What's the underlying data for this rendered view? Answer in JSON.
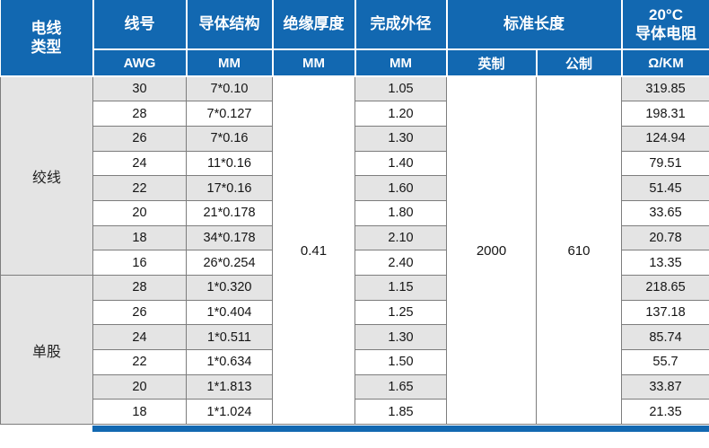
{
  "table": {
    "header": {
      "wire_type": {
        "line1": "电线",
        "line2": "类型"
      },
      "wire_no": {
        "title": "线号",
        "unit": "AWG"
      },
      "conductor_structure": {
        "title": "导体结构",
        "unit": "MM"
      },
      "insulation_thickness": {
        "title": "绝缘厚度",
        "unit": "MM"
      },
      "outer_diameter": {
        "title": "完成外径",
        "unit": "MM"
      },
      "standard_length": {
        "title": "标准长度",
        "unit_imperial": "英制",
        "unit_metric": "公制"
      },
      "resistance": {
        "line1": "20°C",
        "line2": "导体电阻",
        "unit": "Ω/KM"
      }
    },
    "shared": {
      "insulation_thickness_mm": "0.41",
      "standard_length_imperial": "2000",
      "standard_length_metric": "610"
    },
    "sections": [
      {
        "type": "绞线",
        "rows": [
          {
            "awg": "30",
            "structure": "7*0.10",
            "od": "1.05",
            "resistance": "319.85"
          },
          {
            "awg": "28",
            "structure": "7*0.127",
            "od": "1.20",
            "resistance": "198.31"
          },
          {
            "awg": "26",
            "structure": "7*0.16",
            "od": "1.30",
            "resistance": "124.94"
          },
          {
            "awg": "24",
            "structure": "11*0.16",
            "od": "1.40",
            "resistance": "79.51"
          },
          {
            "awg": "22",
            "structure": "17*0.16",
            "od": "1.60",
            "resistance": "51.45"
          },
          {
            "awg": "20",
            "structure": "21*0.178",
            "od": "1.80",
            "resistance": "33.65"
          },
          {
            "awg": "18",
            "structure": "34*0.178",
            "od": "2.10",
            "resistance": "20.78"
          },
          {
            "awg": "16",
            "structure": "26*0.254",
            "od": "2.40",
            "resistance": "13.35"
          }
        ]
      },
      {
        "type": "单股",
        "rows": [
          {
            "awg": "28",
            "structure": "1*0.320",
            "od": "1.15",
            "resistance": "218.65"
          },
          {
            "awg": "26",
            "structure": "1*0.404",
            "od": "1.25",
            "resistance": "137.18"
          },
          {
            "awg": "24",
            "structure": "1*0.511",
            "od": "1.30",
            "resistance": "85.74"
          },
          {
            "awg": "22",
            "structure": "1*0.634",
            "od": "1.50",
            "resistance": "55.7"
          },
          {
            "awg": "20",
            "structure": "1*1.813",
            "od": "1.65",
            "resistance": "33.87"
          },
          {
            "awg": "18",
            "structure": "1*1.024",
            "od": "1.85",
            "resistance": "21.35"
          }
        ]
      }
    ]
  },
  "colors": {
    "header_blue": "#1268b1",
    "row_gray": "#e4e4e4",
    "border_gray": "#7d7d7d"
  }
}
